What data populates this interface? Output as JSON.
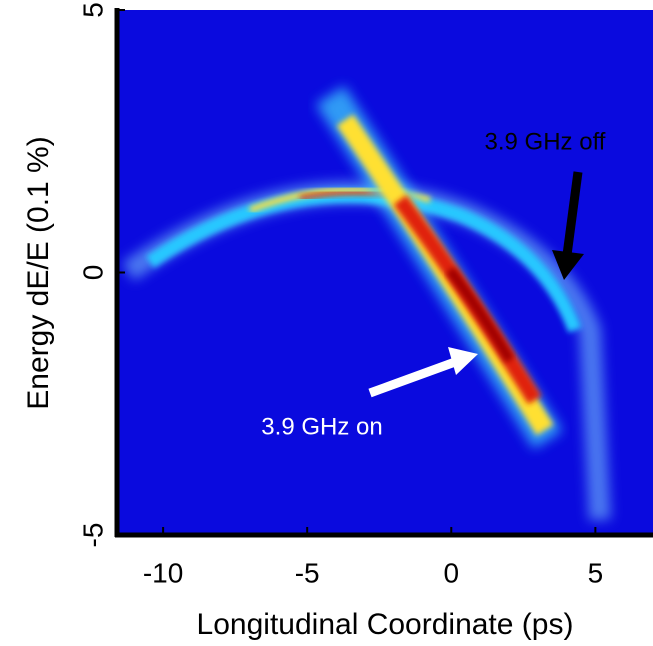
{
  "chart_data": {
    "type": "heatmap",
    "xlabel": "Longitudinal Coordinate (ps)",
    "ylabel": "Energy dE/E (0.1 %)",
    "xlim": [
      -11.6,
      7
    ],
    "ylim": [
      -5,
      5
    ],
    "xticks": [
      -10,
      -5,
      0,
      5
    ],
    "yticks": [
      -5,
      0,
      5
    ],
    "annotations": [
      {
        "text": "3.9 GHz off",
        "x": 3.9,
        "y": 0,
        "color": "#000000"
      },
      {
        "text": "3.9 GHz on",
        "x": 0.8,
        "y": -1.6,
        "color": "#ffffff"
      }
    ]
  }
}
